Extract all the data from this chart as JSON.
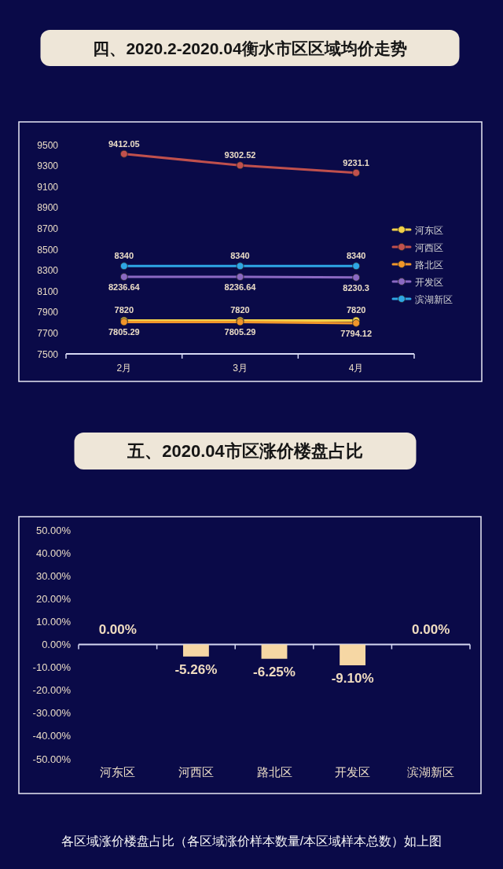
{
  "chart_data": [
    {
      "type": "line",
      "title": "四、2020.2-2020.04衡水市区区域均价走势",
      "categories": [
        "2月",
        "3月",
        "4月"
      ],
      "series": [
        {
          "name": "河东区",
          "color": "#f2d04a",
          "values": [
            7820,
            7820,
            7820
          ]
        },
        {
          "name": "河西区",
          "color": "#c0504d",
          "values": [
            9412.05,
            9302.52,
            9231.1
          ]
        },
        {
          "name": "路北区",
          "color": "#f0962a",
          "values": [
            7805.29,
            7805.29,
            7794.12
          ]
        },
        {
          "name": "开发区",
          "color": "#8a68c2",
          "values": [
            8236.64,
            8236.64,
            8230.3
          ]
        },
        {
          "name": "滨湖新区",
          "color": "#2ea6e4",
          "values": [
            8340,
            8340,
            8340
          ]
        }
      ],
      "ylim": [
        7500,
        9500
      ],
      "yticks": [
        7500,
        7700,
        7900,
        8100,
        8300,
        8500,
        8700,
        8900,
        9100,
        9300,
        9500
      ],
      "data_labels": true,
      "legend": "right",
      "marker": "circle",
      "line_style": "solid"
    },
    {
      "type": "bar",
      "title": "五、2020.04市区涨价楼盘占比",
      "categories": [
        "河东区",
        "河西区",
        "路北区",
        "开发区",
        "滨湖新区"
      ],
      "values": [
        0,
        -5.26,
        -6.25,
        -9.1,
        0
      ],
      "color": "#f6d7a4",
      "value_labels": [
        "0.00%",
        "-5.26%",
        "-6.25%",
        "-9.10%",
        "0.00%"
      ],
      "ylim": [
        -50,
        50
      ],
      "yticks": [
        {
          "value": -50,
          "label": "-50.00%"
        },
        {
          "value": -40,
          "label": "-40.00%"
        },
        {
          "value": -30,
          "label": "-30.00%"
        },
        {
          "value": -20,
          "label": "-20.00%"
        },
        {
          "value": -10,
          "label": "-10.00%"
        },
        {
          "value": 0,
          "label": "0.00%"
        },
        {
          "value": 10,
          "label": "10.00%"
        },
        {
          "value": 20,
          "label": "20.00%"
        },
        {
          "value": 30,
          "label": "30.00%"
        },
        {
          "value": 40,
          "label": "40.00%"
        },
        {
          "value": 50,
          "label": "50.00%"
        }
      ],
      "annotations": [
        "各区域涨价楼盘占比（各区域涨价样本数量/本区域样本总数）如上图"
      ]
    }
  ]
}
